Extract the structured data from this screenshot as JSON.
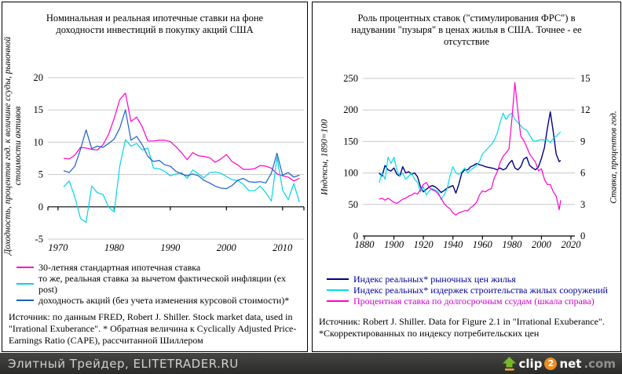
{
  "page": {
    "background": "#ffffff",
    "panel_border_color": "#000000"
  },
  "footer": {
    "site_label": "Элитный Трейдер, ELITETRADER.RU",
    "background": "#3a3a38",
    "text_color": "#d0d0d0",
    "logo": {
      "arrow_icon": "up-arrow",
      "arrow_color": "#76b82a",
      "arrow_base_color": "#e8a33d",
      "clip": "clip",
      "two": "2",
      "circle_color": "#f08c1e",
      "net": "net",
      "dotcom": ".com",
      "dotcom_color": "#90908e"
    }
  },
  "chart_data": [
    {
      "type": "line",
      "title": "Номинальная и реальная ипотечные ставки на фоне доходности инвестиций в покупку акций США",
      "ylabel": "Доходность, процентов год. к величине ссуды, рыночной стоимости активов",
      "xlabel": "",
      "xlim": [
        1968.2,
        2013.8
      ],
      "ylim": [
        -5,
        20
      ],
      "yticks": [
        20,
        15,
        10,
        5,
        0,
        -5
      ],
      "xticks": [
        1970,
        1980,
        1990,
        2000,
        2010
      ],
      "grid": "horizontal",
      "gridline_color": "#c8c8c8",
      "legend_position": "below",
      "x": [
        1971,
        1972,
        1973,
        1974,
        1975,
        1976,
        1977,
        1978,
        1979,
        1980,
        1981,
        1982,
        1983,
        1984,
        1985,
        1986,
        1987,
        1988,
        1989,
        1990,
        1991,
        1992,
        1993,
        1994,
        1995,
        1996,
        1997,
        1998,
        1999,
        2000,
        2001,
        2002,
        2003,
        2004,
        2005,
        2006,
        2007,
        2008,
        2009,
        2010,
        2011,
        2012,
        2013
      ],
      "series": [
        {
          "name": "30-летняя стандартная ипотечная ставка",
          "color": "#ff00cc",
          "values": [
            7.5,
            7.4,
            8.0,
            9.2,
            9.1,
            8.9,
            8.8,
            9.6,
            11.2,
            13.7,
            16.6,
            17.6,
            13.2,
            13.9,
            12.4,
            10.2,
            10.2,
            10.3,
            10.3,
            10.1,
            9.3,
            8.4,
            7.3,
            8.4,
            7.9,
            7.8,
            7.6,
            6.9,
            7.4,
            8.1,
            7.0,
            6.5,
            5.8,
            5.8,
            5.9,
            6.4,
            6.3,
            6.0,
            5.1,
            4.8,
            4.6,
            4.0,
            4.4
          ]
        },
        {
          "name": "то же, реальная ставка за вычетом фактической инфляции (ex post)",
          "color": "#00d5e8",
          "values": [
            3.1,
            4.0,
            1.5,
            -1.8,
            -2.4,
            3.2,
            2.2,
            1.9,
            0.0,
            -0.8,
            6.3,
            10.4,
            9.4,
            9.8,
            8.8,
            9.1,
            6.0,
            5.9,
            5.5,
            4.8,
            5.1,
            5.3,
            4.4,
            5.7,
            5.1,
            4.5,
            5.3,
            5.4,
            5.2,
            4.7,
            4.2,
            4.1,
            3.5,
            2.5,
            2.5,
            3.2,
            2.2,
            0.9,
            7.7,
            2.6,
            1.1,
            3.6,
            0.7
          ]
        },
        {
          "name": "доходность акций (без учета изменения курсовой стоимости)*",
          "color": "#1e5ec8",
          "values": [
            5.6,
            5.3,
            6.3,
            8.9,
            11.9,
            9.0,
            9.4,
            9.2,
            9.8,
            10.5,
            12.2,
            15.0,
            10.3,
            10.9,
            9.6,
            7.8,
            7.0,
            7.2,
            6.5,
            6.3,
            5.5,
            5.1,
            4.8,
            5.1,
            4.8,
            4.1,
            3.7,
            3.2,
            2.9,
            2.8,
            3.3,
            4.1,
            4.4,
            3.9,
            3.8,
            3.9,
            3.7,
            5.2,
            8.3,
            4.9,
            5.3,
            4.6,
            4.9
          ]
        }
      ],
      "source": "Источник: по данным FRED, Robert J. Shiller.  Stock market data, used in \"Irrational Exuberance\". * Обратная величина к Cyclically Adjusted Price-Earnings Ratio (CAPE), рассчитанной Шиллером"
    },
    {
      "type": "line",
      "title": "Роль процентных ставок (\"стимулирования ФРС\") в надувании \"пузыря\" в ценах жилья в США. Точнее - ее отсутствие",
      "ylabel": "Индексы, 1890=100",
      "ylabel_right": "Ставка, процентов год.",
      "xlabel": "",
      "xlim": [
        1880,
        2020
      ],
      "ylim": [
        0,
        250
      ],
      "ylim_right": [
        0,
        15
      ],
      "yticks": [
        250,
        200,
        150,
        100,
        50,
        0
      ],
      "yticks_right": [
        15,
        12,
        9,
        6,
        3,
        0
      ],
      "xticks": [
        1880,
        1900,
        1920,
        1940,
        1960,
        1980,
        2000,
        2020
      ],
      "grid": "horizontal",
      "gridline_color": "#c8c8c8",
      "legend_position": "below",
      "x": [
        1890,
        1892,
        1894,
        1896,
        1898,
        1900,
        1902,
        1904,
        1906,
        1908,
        1910,
        1912,
        1914,
        1916,
        1918,
        1920,
        1922,
        1924,
        1926,
        1928,
        1930,
        1932,
        1934,
        1936,
        1938,
        1940,
        1942,
        1944,
        1946,
        1948,
        1950,
        1952,
        1954,
        1956,
        1958,
        1960,
        1962,
        1964,
        1966,
        1968,
        1970,
        1972,
        1974,
        1976,
        1978,
        1980,
        1982,
        1984,
        1986,
        1988,
        1990,
        1992,
        1994,
        1996,
        1998,
        2000,
        2002,
        2004,
        2006,
        2008,
        2010,
        2012,
        2013
      ],
      "series": [
        {
          "name": "Индекс реальных* рыночных цен жилья",
          "color": "#000080",
          "label_color": "#000099",
          "axis": "left",
          "width": 1.4,
          "values": [
            100,
            95,
            112,
            105,
            103,
            108,
            98,
            95,
            110,
            100,
            102,
            98,
            100,
            94,
            78,
            70,
            74,
            78,
            80,
            78,
            74,
            69,
            72,
            76,
            78,
            80,
            68,
            82,
            100,
            105,
            105,
            110,
            112,
            115,
            113,
            112,
            110,
            109,
            108,
            107,
            105,
            108,
            105,
            107,
            115,
            120,
            108,
            105,
            110,
            122,
            125,
            112,
            108,
            105,
            110,
            123,
            140,
            170,
            197,
            165,
            130,
            118,
            120
          ]
        },
        {
          "name": "Индекс реальных* издержек строительства жилых сооружений",
          "color": "#00dcec",
          "label_color": "#000099",
          "axis": "left",
          "values": [
            85,
            100,
            90,
            125,
            115,
            125,
            105,
            95,
            100,
            90,
            95,
            100,
            90,
            85,
            70,
            78,
            65,
            72,
            75,
            73,
            70,
            58,
            65,
            75,
            95,
            110,
            100,
            98,
            102,
            108,
            100,
            105,
            108,
            112,
            118,
            130,
            135,
            140,
            145,
            152,
            163,
            180,
            195,
            185,
            192,
            195,
            185,
            180,
            175,
            170,
            168,
            160,
            152,
            150,
            152,
            153,
            152,
            153,
            148,
            155,
            158,
            163,
            165
          ]
        },
        {
          "name": "Процентная ставка по долгосрочным ссудам (шкала справа)",
          "color": "#ff00cc",
          "label_color": "#cc00cc",
          "axis": "right",
          "values": [
            3.5,
            3.6,
            3.4,
            3.6,
            3.4,
            3.2,
            3.1,
            3.3,
            3.5,
            3.6,
            3.8,
            3.9,
            4.1,
            4.0,
            4.4,
            4.9,
            5.1,
            4.6,
            4.4,
            4.3,
            4.0,
            3.6,
            3.1,
            2.8,
            2.6,
            2.2,
            2.0,
            2.2,
            2.3,
            2.4,
            2.4,
            2.7,
            2.9,
            3.2,
            3.9,
            4.3,
            4.2,
            4.4,
            4.5,
            5.5,
            6.1,
            7.0,
            7.6,
            7.9,
            8.3,
            11.2,
            14.6,
            11.9,
            9.5,
            9.1,
            8.5,
            7.8,
            7.4,
            7.0,
            6.2,
            6.4,
            5.4,
            4.9,
            4.9,
            4.2,
            3.8,
            2.5,
            3.4
          ]
        }
      ],
      "source": "Источник:   Robert J. Shiller.  Data for Figure 2.1 in \"Irrational Exuberance\". *Скорректированных по индексу потребительских цен"
    }
  ]
}
